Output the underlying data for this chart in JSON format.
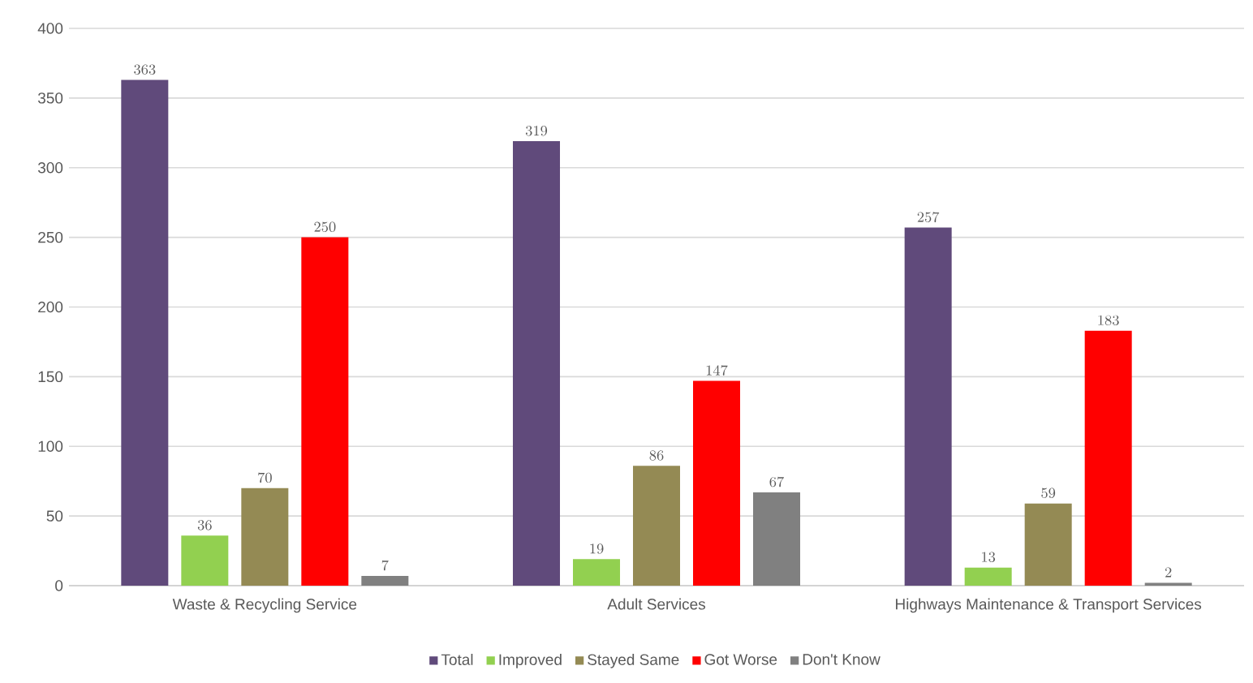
{
  "chart_data": {
    "type": "bar",
    "categories": [
      "Waste & Recycling Service",
      "Adult Services",
      "Highways Maintenance & Transport Services"
    ],
    "series": [
      {
        "name": "Total",
        "color": "#604a7b",
        "values": [
          363,
          319,
          257
        ]
      },
      {
        "name": "Improved",
        "color": "#92d050",
        "values": [
          36,
          19,
          13
        ]
      },
      {
        "name": "Stayed Same",
        "color": "#948a54",
        "values": [
          70,
          86,
          59
        ]
      },
      {
        "name": "Got Worse",
        "color": "#ff0000",
        "values": [
          250,
          147,
          183
        ]
      },
      {
        "name": "Don't Know",
        "color": "#808080",
        "values": [
          7,
          67,
          2
        ]
      }
    ],
    "ylim": [
      0,
      400
    ],
    "yticks": [
      0,
      50,
      100,
      150,
      200,
      250,
      300,
      350,
      400
    ],
    "grid": "y",
    "legend": "bottom",
    "data_labels": true
  }
}
